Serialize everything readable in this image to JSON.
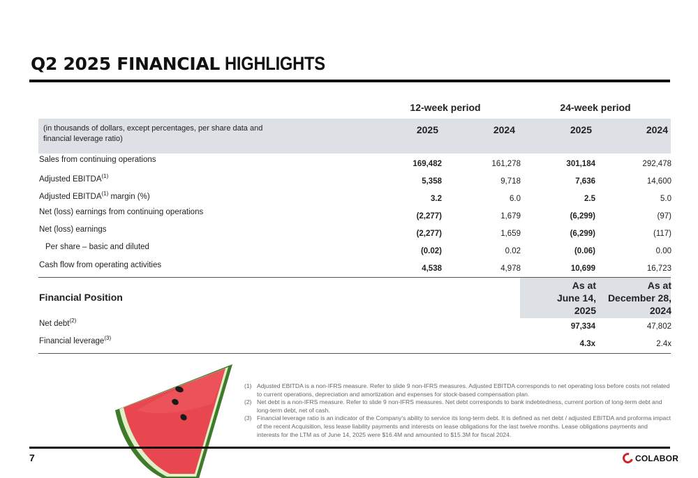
{
  "title": {
    "bold": "Q2 2025 FINANCIAL",
    "light": "HIGHLIGHTS"
  },
  "periods": {
    "p12": "12-week period",
    "p24": "24-week period"
  },
  "header_note": "(in thousands of dollars, except percentages, per share data and financial leverage ratio)",
  "years": [
    "2025",
    "2024",
    "2025",
    "2024"
  ],
  "rows": [
    {
      "label": "Sales from continuing operations",
      "sup": "",
      "values": [
        "169,482",
        "161,278",
        "301,184",
        "292,478"
      ]
    },
    {
      "label": "Adjusted EBITDA",
      "sup": "(1)",
      "values": [
        "5,358",
        "9,718",
        "7,636",
        "14,600"
      ]
    },
    {
      "label": "Adjusted EBITDA",
      "sup": "(1)",
      "suffix": " margin (%)",
      "values": [
        "3.2",
        "6.0",
        "2.5",
        "5.0"
      ]
    },
    {
      "label": "Net (loss) earnings from continuing operations",
      "sup": "",
      "values": [
        "(2,277)",
        "1,679",
        "(6,299)",
        "(97)"
      ]
    },
    {
      "label": "Net (loss) earnings",
      "sup": "",
      "values": [
        "(2,277)",
        "1,659",
        "(6,299)",
        "(117)"
      ]
    },
    {
      "label": "Per share – basic and diluted",
      "sup": "",
      "values": [
        "(0.02)",
        "0.02",
        "(0.06)",
        "0.00"
      ]
    },
    {
      "label": "Cash flow from operating activities",
      "sup": "",
      "values": [
        "4,538",
        "4,978",
        "10,699",
        "16,723"
      ]
    }
  ],
  "financial_position": {
    "title": "Financial Position",
    "head_1": [
      "As at",
      "June 14,",
      "2025"
    ],
    "head_2": [
      "As at",
      "December 28,",
      "2024"
    ],
    "rows": [
      {
        "label": "Net debt",
        "sup": "(2)",
        "values": [
          "97,334",
          "47,802"
        ]
      },
      {
        "label": "Financial leverage",
        "sup": "(3)",
        "values": [
          "4.3x",
          "2.4x"
        ]
      }
    ]
  },
  "footnotes": [
    {
      "num": "(1)",
      "text": "Adjusted EBITDA is a non-IFRS measure. Refer to slide 9 non-IFRS measures. Adjusted EBITDA corresponds to net operating loss before costs not related to current operations, depreciation and amortization and expenses for stock-based compensation plan."
    },
    {
      "num": "(2)",
      "text": "Net debt is a non-IFRS measure. Refer to slide 9 non-IFRS measures. Net debt corresponds to bank indebtedness, current portion of long-term debt and long-term debt, net of cash."
    },
    {
      "num": "(3)",
      "text": "Financial leverage ratio is an indicator of the Company's ability to service its long-term debt. It is defined as net debt / adjusted EBITDA and proforma impact of the recent Acquisition, less lease liability payments and interests on lease obligations for the last twelve months. Lease obligations payments and interests for the LTM as of June 14, 2025 were $16.4M and amounted to $15.3M for fiscal 2024."
    }
  ],
  "page_number": "7",
  "logo": "COLABOR",
  "colors": {
    "band": "#dde1e6",
    "accent": "#d2232a",
    "rule": "#111111"
  }
}
